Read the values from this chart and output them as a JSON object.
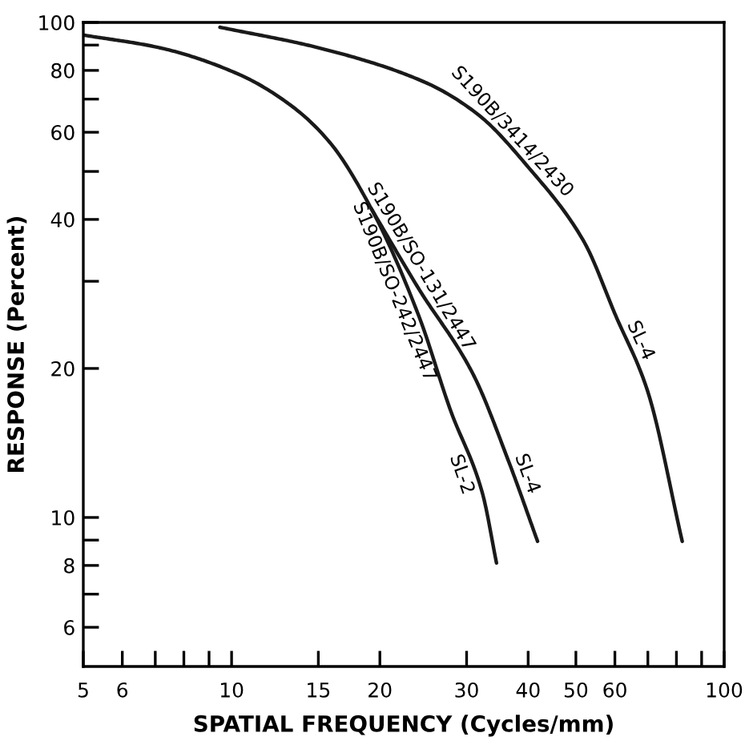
{
  "chart_data": {
    "type": "line",
    "xlabel": "SPATIAL FREQUENCY (Cycles/mm)",
    "ylabel": "RESPONSE (Percent)",
    "log": "xy",
    "grid": false,
    "legend": false,
    "marker": "none",
    "line_style": "solid",
    "xlim": [
      5,
      100
    ],
    "ylim": [
      5,
      100
    ],
    "xticks": [
      5,
      6,
      {
        "value": 7,
        "label": null
      },
      {
        "value": 8,
        "label": null
      },
      {
        "value": 9,
        "label": null
      },
      10,
      15,
      20,
      30,
      40,
      50,
      60,
      {
        "value": 70,
        "label": null
      },
      {
        "value": 80,
        "label": null
      },
      {
        "value": 90,
        "label": null
      },
      100
    ],
    "yticks": [
      6,
      {
        "value": 7,
        "label": null
      },
      8,
      {
        "value": 9,
        "label": null
      },
      10,
      20,
      {
        "value": 30,
        "label": null
      },
      40,
      {
        "value": 50,
        "label": null
      },
      60,
      {
        "value": 70,
        "label": null
      },
      80,
      {
        "value": 90,
        "label": null
      },
      100
    ],
    "series": [
      {
        "color": "#1a1a1a",
        "x": [
          5.0,
          7.14,
          10.36,
          13.24,
          15.81,
          19.2,
          23.97,
          27.8,
          32.3,
          34.5
        ],
        "values": [
          94.3,
          88.9,
          78.5,
          67.8,
          57.3,
          42.1,
          25.6,
          16.5,
          11.2,
          8.09
        ]
      },
      {
        "color": "#1a1a1a",
        "x": [
          19.2,
          23.97,
          30.9,
          36.6,
          41.8
        ],
        "values": [
          42.1,
          29.0,
          19.5,
          12.9,
          8.95
        ]
      },
      {
        "color": "#1a1a1a",
        "x": [
          9.47,
          15.0,
          24.7,
          31.5,
          40.3,
          51.9,
          60.2,
          69.8,
          82.2
        ],
        "values": [
          97.8,
          88.9,
          75.7,
          65.4,
          50.6,
          36.1,
          25.6,
          18.1,
          8.95
        ]
      }
    ],
    "annotations": [
      {
        "text": "S190B/3414/2430",
        "x": 35.5,
        "y": 57.7
      },
      {
        "text": "SL-4",
        "x": 64,
        "y": 22.2
      },
      {
        "text": "S190B/SO-131/2447",
        "x": 23,
        "y": 31.1
      },
      {
        "text": "SL-4",
        "x": 37.6,
        "y": 12.0
      },
      {
        "text": "S190B/SO-242/2447",
        "x": 22.6,
        "y": 29.2
      },
      {
        "text": "SL-2",
        "x": 31,
        "y": 12.45
      }
    ]
  }
}
